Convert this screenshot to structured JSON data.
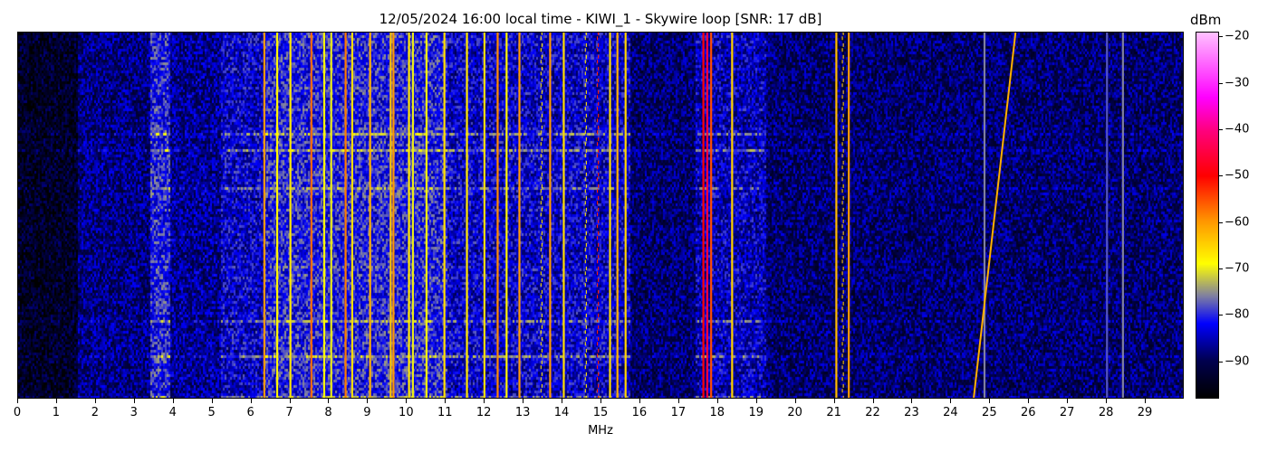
{
  "chart_data": {
    "type": "heatmap",
    "title": "12/05/2024 16:00 local time - KIWI_1 - Skywire loop [SNR: 17 dB]",
    "xlabel": "MHz",
    "ylabel": "",
    "xlim": [
      0,
      30
    ],
    "xticks": [
      "0",
      "1",
      "2",
      "3",
      "4",
      "5",
      "6",
      "7",
      "8",
      "9",
      "10",
      "11",
      "12",
      "13",
      "14",
      "15",
      "16",
      "17",
      "18",
      "19",
      "20",
      "21",
      "22",
      "23",
      "24",
      "25",
      "26",
      "27",
      "28",
      "29"
    ],
    "colorbar": {
      "label": "dBm",
      "range": [
        -98,
        -19
      ],
      "ticks": [
        "-20",
        "-30",
        "-40",
        "-50",
        "-60",
        "-70",
        "-80",
        "-90"
      ],
      "colormap": [
        {
          "dBm": -98,
          "color": "#000000"
        },
        {
          "dBm": -90,
          "color": "#000050"
        },
        {
          "dBm": -82,
          "color": "#0000ff"
        },
        {
          "dBm": -76,
          "color": "#8080a0"
        },
        {
          "dBm": -69,
          "color": "#ffff00"
        },
        {
          "dBm": -60,
          "color": "#ff9900"
        },
        {
          "dBm": -50,
          "color": "#ff0000"
        },
        {
          "dBm": -40,
          "color": "#ff0080"
        },
        {
          "dBm": -33,
          "color": "#ff00ff"
        },
        {
          "dBm": -19,
          "color": "#ffc0ff"
        }
      ]
    },
    "noise_floor_bands": [
      {
        "from": 0,
        "to": 1.5,
        "dBm": -94
      },
      {
        "from": 1.5,
        "to": 3.4,
        "dBm": -88
      },
      {
        "from": 3.4,
        "to": 3.9,
        "dBm": -81
      },
      {
        "from": 3.9,
        "to": 5.2,
        "dBm": -87
      },
      {
        "from": 5.2,
        "to": 6.3,
        "dBm": -84
      },
      {
        "from": 6.3,
        "to": 11.0,
        "dBm": -81
      },
      {
        "from": 11.0,
        "to": 15.7,
        "dBm": -84
      },
      {
        "from": 15.7,
        "to": 17.4,
        "dBm": -89
      },
      {
        "from": 17.4,
        "to": 19.2,
        "dBm": -85
      },
      {
        "from": 19.2,
        "to": 30,
        "dBm": -89
      }
    ],
    "signals": [
      {
        "mhz": 6.33,
        "dBm": -60,
        "pattern": "solid"
      },
      {
        "mhz": 6.66,
        "dBm": -68,
        "pattern": "solid"
      },
      {
        "mhz": 7.0,
        "dBm": -67,
        "pattern": "solid"
      },
      {
        "mhz": 7.54,
        "dBm": -57,
        "pattern": "solid"
      },
      {
        "mhz": 7.87,
        "dBm": -69,
        "pattern": "solid"
      },
      {
        "mhz": 8.05,
        "dBm": -70,
        "pattern": "solid"
      },
      {
        "mhz": 8.42,
        "dBm": -58,
        "pattern": "solid"
      },
      {
        "mhz": 8.59,
        "dBm": -66,
        "pattern": "solid"
      },
      {
        "mhz": 9.05,
        "dBm": -62,
        "pattern": "solid"
      },
      {
        "mhz": 9.58,
        "dBm": -64,
        "pattern": "solid"
      },
      {
        "mhz": 9.65,
        "dBm": -60,
        "pattern": "solid"
      },
      {
        "mhz": 10.05,
        "dBm": -67,
        "pattern": "solid"
      },
      {
        "mhz": 10.15,
        "dBm": -70,
        "pattern": "solid"
      },
      {
        "mhz": 10.5,
        "dBm": -68,
        "pattern": "solid"
      },
      {
        "mhz": 10.96,
        "dBm": -66,
        "pattern": "solid"
      },
      {
        "mhz": 11.54,
        "dBm": -67,
        "pattern": "solid"
      },
      {
        "mhz": 11.99,
        "dBm": -66,
        "pattern": "solid"
      },
      {
        "mhz": 12.33,
        "dBm": -59,
        "pattern": "solid"
      },
      {
        "mhz": 12.56,
        "dBm": -68,
        "pattern": "solid"
      },
      {
        "mhz": 12.89,
        "dBm": -60,
        "pattern": "solid"
      },
      {
        "mhz": 13.47,
        "dBm": -67,
        "pattern": "dashed"
      },
      {
        "mhz": 13.68,
        "dBm": -60,
        "pattern": "solid"
      },
      {
        "mhz": 14.03,
        "dBm": -66,
        "pattern": "solid"
      },
      {
        "mhz": 14.61,
        "dBm": -67,
        "pattern": "dashed"
      },
      {
        "mhz": 14.92,
        "dBm": -52,
        "pattern": "dashed"
      },
      {
        "mhz": 15.22,
        "dBm": -66,
        "pattern": "solid"
      },
      {
        "mhz": 15.41,
        "dBm": -62,
        "pattern": "solid"
      },
      {
        "mhz": 15.62,
        "dBm": -65,
        "pattern": "solid"
      },
      {
        "mhz": 17.62,
        "dBm": -50,
        "pattern": "solid"
      },
      {
        "mhz": 17.72,
        "dBm": -45,
        "pattern": "solid"
      },
      {
        "mhz": 17.82,
        "dBm": -55,
        "pattern": "solid"
      },
      {
        "mhz": 18.36,
        "dBm": -65,
        "pattern": "solid"
      },
      {
        "mhz": 21.04,
        "dBm": -63,
        "pattern": "solid"
      },
      {
        "mhz": 21.22,
        "dBm": -64,
        "pattern": "dashed"
      },
      {
        "mhz": 21.36,
        "dBm": -60,
        "pattern": "solid"
      },
      {
        "mhz": 24.85,
        "dBm": -76,
        "pattern": "solid"
      },
      {
        "mhz": 28.0,
        "dBm": -78,
        "pattern": "solid"
      },
      {
        "mhz": 28.41,
        "dBm": -76,
        "pattern": "solid"
      }
    ],
    "sweep": {
      "start_mhz": 24.57,
      "end_mhz": 25.65,
      "dBm": -62,
      "direction": "rising over time (bottom to top)"
    }
  }
}
